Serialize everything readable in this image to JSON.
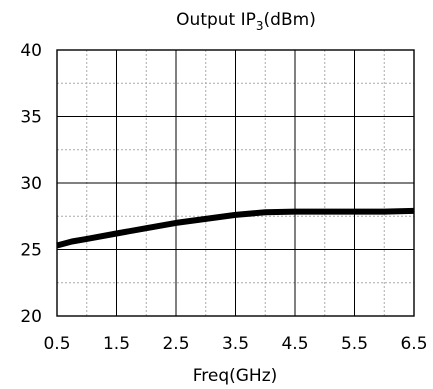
{
  "chart_data": {
    "type": "line",
    "title_main": "Output IP",
    "title_sub": "3",
    "title_unit": "(dBm)",
    "xlabel": "Freq(GHz)",
    "ylabel": "",
    "xlim": [
      0.5,
      6.5
    ],
    "ylim": [
      20,
      40
    ],
    "xticks": [
      0.5,
      1.5,
      2.5,
      3.5,
      4.5,
      5.5,
      6.5
    ],
    "xtick_labels": [
      "0.5",
      "1.5",
      "2.5",
      "3.5",
      "4.5",
      "5.5",
      "6.5"
    ],
    "yticks": [
      20,
      25,
      30,
      35,
      40
    ],
    "ytick_labels": [
      "20",
      "25",
      "30",
      "35",
      "40"
    ],
    "major_grid_x": [
      1.5,
      2.5,
      3.5,
      4.5,
      5.5
    ],
    "minor_grid_x": [
      1,
      2,
      3,
      4,
      5,
      6
    ],
    "major_grid_y": [
      25,
      30,
      35
    ],
    "minor_grid_y": [
      22.5,
      27.5,
      32.5,
      37.5
    ],
    "grid": true,
    "series": [
      {
        "color": "#000000",
        "x": [
          0.5,
          0.75,
          1.0,
          1.5,
          2.0,
          2.5,
          3.0,
          3.5,
          4.0,
          4.5,
          5.0,
          5.5,
          6.0,
          6.5
        ],
        "y": [
          25.3,
          25.6,
          25.8,
          26.2,
          26.6,
          27.0,
          27.3,
          27.6,
          27.8,
          27.85,
          27.85,
          27.85,
          27.85,
          27.9
        ]
      }
    ]
  }
}
